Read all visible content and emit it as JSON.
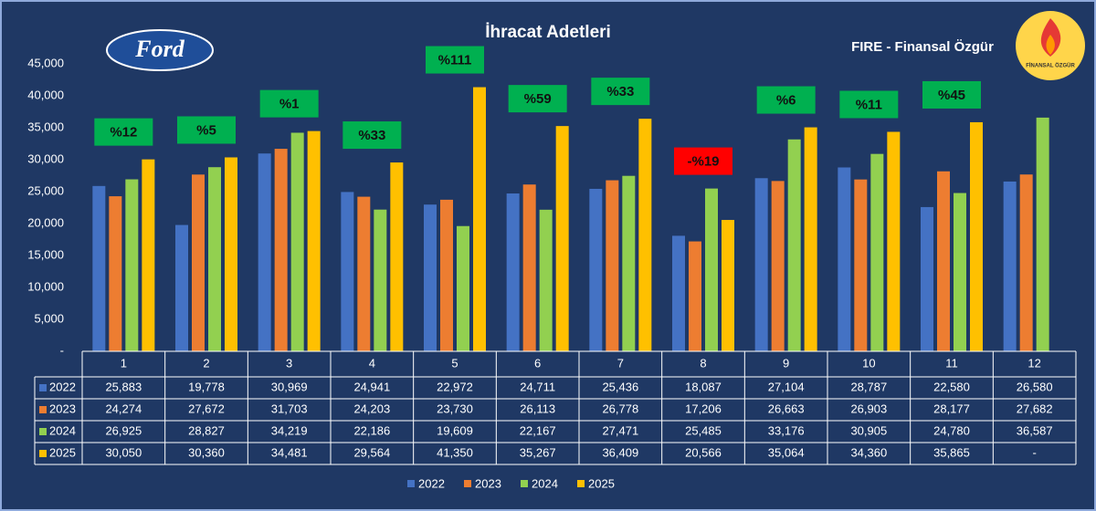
{
  "chart_data": {
    "type": "bar",
    "title": "İhracat Adetleri",
    "subtitle": "FIRE - Finansal Özgür",
    "logo": "Ford",
    "badge": "FİNANSAL ÖZGÜR",
    "categories": [
      "1",
      "2",
      "3",
      "4",
      "5",
      "6",
      "7",
      "8",
      "9",
      "10",
      "11",
      "12"
    ],
    "series": [
      {
        "name": "2022",
        "color": "#4472c4",
        "values": [
          25883,
          19778,
          30969,
          24941,
          22972,
          24711,
          25436,
          18087,
          27104,
          28787,
          22580,
          26580
        ],
        "value_labels": [
          "25,883",
          "19,778",
          "30,969",
          "24,941",
          "22,972",
          "24,711",
          "25,436",
          "18,087",
          "27,104",
          "28,787",
          "22,580",
          "26,580"
        ]
      },
      {
        "name": "2023",
        "color": "#ed7d31",
        "values": [
          24274,
          27672,
          31703,
          24203,
          23730,
          26113,
          26778,
          17206,
          26663,
          26903,
          28177,
          27682
        ],
        "value_labels": [
          "24,274",
          "27,672",
          "31,703",
          "24,203",
          "23,730",
          "26,113",
          "26,778",
          "17,206",
          "26,663",
          "26,903",
          "28,177",
          "27,682"
        ]
      },
      {
        "name": "2024",
        "color": "#92d050",
        "values": [
          26925,
          28827,
          34219,
          22186,
          19609,
          22167,
          27471,
          25485,
          33176,
          30905,
          24780,
          36587
        ],
        "value_labels": [
          "26,925",
          "28,827",
          "34,219",
          "22,186",
          "19,609",
          "22,167",
          "27,471",
          "25,485",
          "33,176",
          "30,905",
          "24,780",
          "36,587"
        ]
      },
      {
        "name": "2025",
        "color": "#ffc000",
        "values": [
          30050,
          30360,
          34481,
          29564,
          41350,
          35267,
          36409,
          20566,
          35064,
          34360,
          35865,
          null
        ],
        "value_labels": [
          "30,050",
          "30,360",
          "34,481",
          "29,564",
          "41,350",
          "35,267",
          "36,409",
          "20,566",
          "35,064",
          "34,360",
          "35,865",
          "-"
        ]
      }
    ],
    "annotations": [
      "%12",
      "%5",
      "%1",
      "%33",
      "%111",
      "%59",
      "%33",
      "-%19",
      "%6",
      "%11",
      "%45",
      null
    ],
    "annotation_colors": [
      "#00b050",
      "#00b050",
      "#00b050",
      "#00b050",
      "#00b050",
      "#00b050",
      "#00b050",
      "#ff0000",
      "#00b050",
      "#00b050",
      "#00b050",
      null
    ],
    "ylim": [
      0,
      45000
    ],
    "yticks": [
      {
        "value": 0,
        "label": "-"
      },
      {
        "value": 5000,
        "label": "5,000"
      },
      {
        "value": 10000,
        "label": "10,000"
      },
      {
        "value": 15000,
        "label": "15,000"
      },
      {
        "value": 20000,
        "label": "20,000"
      },
      {
        "value": 25000,
        "label": "25,000"
      },
      {
        "value": 30000,
        "label": "30,000"
      },
      {
        "value": 35000,
        "label": "35,000"
      },
      {
        "value": 40000,
        "label": "40,000"
      },
      {
        "value": 45000,
        "label": "45,000"
      }
    ],
    "grid": false
  }
}
